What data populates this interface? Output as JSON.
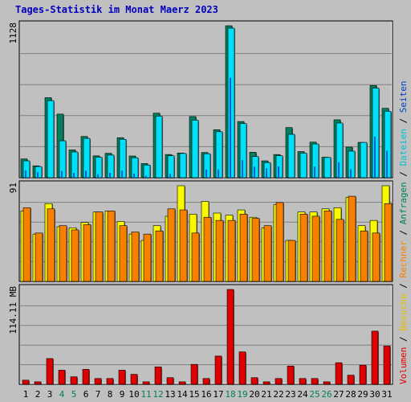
{
  "title": "Tages-Statistik im Monat Maerz 2023",
  "colors": {
    "background": "#c0c0c0",
    "title": "#0000c0",
    "anfragen": "#00805c",
    "dateien": "#00e0f8",
    "seiten": "#0060e0",
    "besuche": "#f8f800",
    "rechner": "#f88000",
    "volumen": "#e00000",
    "weekend_label": "#00805c",
    "weekday_label": "#000000"
  },
  "right_legend": {
    "top": [
      {
        "text": "Anfragen",
        "color": "#00805c"
      },
      {
        "text": "Dateien",
        "color": "#00c0d0"
      },
      {
        "text": "Seiten",
        "color": "#0040c0"
      }
    ],
    "middle": [
      {
        "text": "Besuche",
        "color": "#e0c000"
      },
      {
        "text": "Rechner",
        "color": "#f88000"
      }
    ],
    "bottom": [
      {
        "text": "Volumen",
        "color": "#e00000"
      }
    ],
    "separator": " / "
  },
  "chart_data": [
    {
      "type": "bar",
      "panel": "top",
      "y_label": "1128",
      "ylim": [
        0,
        1128
      ],
      "x": [
        1,
        2,
        3,
        4,
        5,
        6,
        7,
        8,
        9,
        10,
        11,
        12,
        13,
        14,
        15,
        16,
        17,
        18,
        19,
        20,
        21,
        22,
        23,
        24,
        25,
        26,
        27,
        28,
        29,
        30,
        31
      ],
      "series": [
        {
          "name": "Anfragen",
          "values": [
            139,
            88,
            594,
            472,
            206,
            306,
            162,
            181,
            297,
            161,
            105,
            479,
            172,
            183,
            454,
            187,
            356,
            1128,
            417,
            189,
            125,
            172,
            372,
            194,
            264,
            152,
            430,
            227,
            262,
            685,
            515
          ]
        },
        {
          "name": "Dateien",
          "values": [
            125,
            83,
            572,
            274,
            191,
            292,
            152,
            168,
            285,
            148,
            94,
            457,
            163,
            180,
            427,
            178,
            341,
            1110,
            402,
            157,
            112,
            163,
            322,
            182,
            250,
            150,
            406,
            197,
            262,
            665,
            493
          ]
        },
        {
          "name": "Seiten",
          "values": [
            52,
            40,
            0,
            49,
            36,
            51,
            26,
            36,
            51,
            30,
            14,
            0,
            29,
            0,
            0,
            60,
            61,
            742,
            130,
            81,
            70,
            84,
            0,
            0,
            83,
            0,
            114,
            63,
            0,
            305,
            200
          ]
        }
      ]
    },
    {
      "type": "bar",
      "panel": "middle",
      "y_label": "91",
      "ylim": [
        0,
        91
      ],
      "x": [
        1,
        2,
        3,
        4,
        5,
        6,
        7,
        8,
        9,
        10,
        11,
        12,
        13,
        14,
        15,
        16,
        17,
        18,
        19,
        20,
        21,
        22,
        23,
        24,
        25,
        26,
        27,
        28,
        29,
        30,
        31
      ],
      "series": [
        {
          "name": "Besuche",
          "values": [
            67,
            45,
            74,
            52,
            51,
            56,
            66,
            67,
            57,
            45,
            39,
            53,
            62,
            91,
            64,
            76,
            65,
            63,
            68,
            61,
            51,
            73,
            39,
            66,
            66,
            69,
            70,
            80,
            53,
            58,
            91
          ]
        },
        {
          "name": "Rechner",
          "values": [
            70,
            46,
            69,
            53,
            49,
            54,
            66,
            67,
            53,
            47,
            45,
            48,
            69,
            68,
            46,
            61,
            58,
            58,
            64,
            60,
            53,
            75,
            39,
            64,
            62,
            67,
            59,
            81,
            48,
            46,
            74
          ]
        }
      ]
    },
    {
      "type": "bar",
      "panel": "bottom",
      "y_label": "114.11 MB",
      "ylim": [
        0,
        114.11
      ],
      "x": [
        1,
        2,
        3,
        4,
        5,
        6,
        7,
        8,
        9,
        10,
        11,
        12,
        13,
        14,
        15,
        16,
        17,
        18,
        19,
        20,
        21,
        22,
        23,
        24,
        25,
        26,
        27,
        28,
        29,
        30,
        31
      ],
      "series": [
        {
          "name": "Volumen",
          "values": [
            5,
            3,
            31,
            17,
            9,
            18,
            7,
            7,
            17,
            12,
            3,
            21,
            8,
            3,
            24,
            7,
            34,
            114.11,
            39,
            8,
            3,
            7,
            22,
            7,
            7,
            3,
            26,
            11,
            23,
            64,
            46
          ]
        }
      ]
    }
  ],
  "x_labels": [
    {
      "text": "1",
      "weekend": false
    },
    {
      "text": "2",
      "weekend": false
    },
    {
      "text": "3",
      "weekend": false
    },
    {
      "text": "4",
      "weekend": true
    },
    {
      "text": "5",
      "weekend": true
    },
    {
      "text": "6",
      "weekend": false
    },
    {
      "text": "7",
      "weekend": false
    },
    {
      "text": "8",
      "weekend": false
    },
    {
      "text": "9",
      "weekend": false
    },
    {
      "text": "10",
      "weekend": false
    },
    {
      "text": "11",
      "weekend": true
    },
    {
      "text": "12",
      "weekend": true
    },
    {
      "text": "13",
      "weekend": false
    },
    {
      "text": "14",
      "weekend": false
    },
    {
      "text": "15",
      "weekend": false
    },
    {
      "text": "16",
      "weekend": false
    },
    {
      "text": "17",
      "weekend": false
    },
    {
      "text": "18",
      "weekend": true
    },
    {
      "text": "19",
      "weekend": true
    },
    {
      "text": "20",
      "weekend": false
    },
    {
      "text": "21",
      "weekend": false
    },
    {
      "text": "22",
      "weekend": false
    },
    {
      "text": "23",
      "weekend": false
    },
    {
      "text": "24",
      "weekend": false
    },
    {
      "text": "25",
      "weekend": true
    },
    {
      "text": "26",
      "weekend": true
    },
    {
      "text": "27",
      "weekend": false
    },
    {
      "text": "28",
      "weekend": false
    },
    {
      "text": "29",
      "weekend": false
    },
    {
      "text": "30",
      "weekend": false
    },
    {
      "text": "31",
      "weekend": false
    }
  ]
}
